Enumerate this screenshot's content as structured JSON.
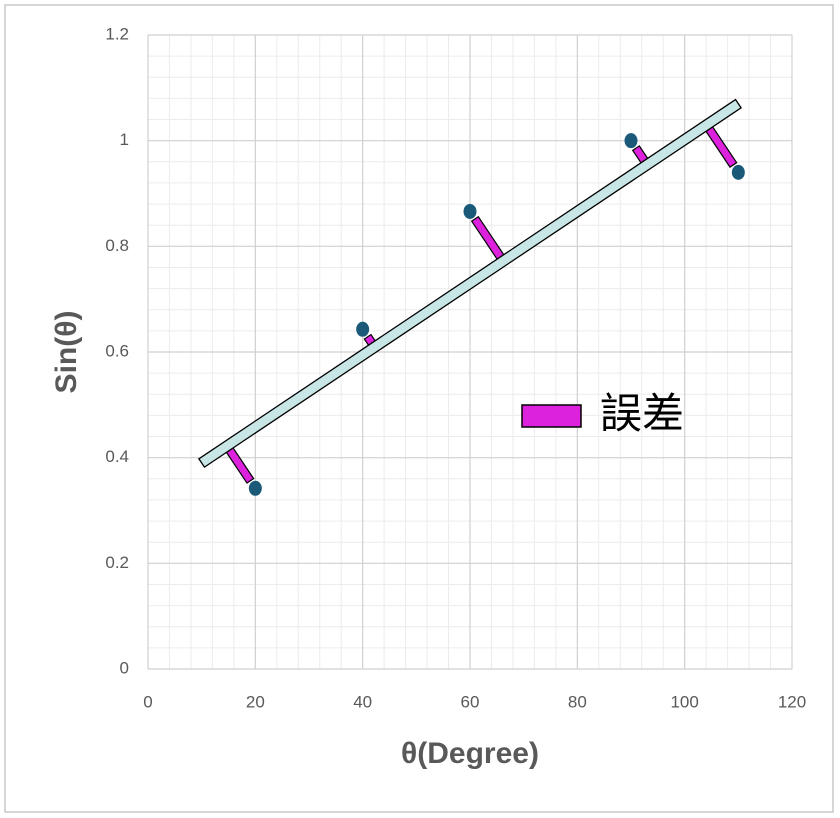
{
  "chart_data": {
    "type": "scatter",
    "x": [
      20,
      40,
      60,
      90,
      110
    ],
    "values": [
      0.342,
      0.643,
      0.866,
      1.0,
      0.94
    ],
    "color": "#1a5a78",
    "fit": {
      "x": [
        10,
        110
      ],
      "values": [
        0.39,
        1.07
      ],
      "color": "#c8e6e6"
    },
    "error": {
      "name": "誤差",
      "color": "#dd22dd"
    },
    "xlabel": "θ(Degree)",
    "ylabel": "Sin(θ)",
    "xlim": [
      0,
      120
    ],
    "xticks": [
      0,
      20,
      40,
      60,
      80,
      100,
      120
    ],
    "ylim": [
      0,
      1.2
    ],
    "yticks": [
      0,
      0.2,
      0.4,
      0.6,
      0.8,
      1,
      1.2
    ],
    "grid": true,
    "minor_grid": true
  }
}
